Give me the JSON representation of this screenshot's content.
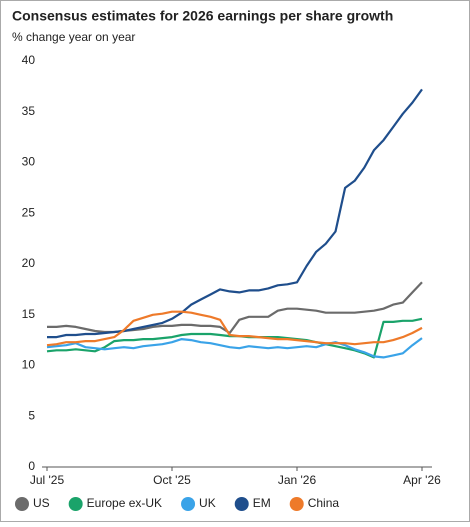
{
  "chart_data": {
    "type": "line",
    "title": "Consensus estimates for 2026 earnings per share growth",
    "subtitle": "% change year on year",
    "categories": [
      "Jul '25",
      null,
      null,
      null,
      null,
      null,
      null,
      null,
      null,
      null,
      null,
      null,
      null,
      "Oct '25",
      null,
      null,
      null,
      null,
      null,
      null,
      null,
      null,
      null,
      null,
      null,
      null,
      "Jan '26",
      null,
      null,
      null,
      null,
      null,
      null,
      null,
      null,
      null,
      null,
      null,
      null,
      "Apr '26"
    ],
    "ylim": [
      0,
      40
    ],
    "yticks": [
      0,
      5,
      10,
      15,
      20,
      25,
      30,
      35,
      40
    ],
    "series": [
      {
        "name": "US",
        "color": "#6b6b6b",
        "values": [
          13.8,
          13.8,
          13.9,
          13.8,
          13.6,
          13.4,
          13.3,
          13.3,
          13.4,
          13.5,
          13.6,
          13.8,
          13.9,
          13.9,
          14.0,
          14.0,
          13.9,
          13.9,
          13.8,
          13.2,
          14.5,
          14.8,
          14.8,
          14.8,
          15.4,
          15.6,
          15.6,
          15.5,
          15.4,
          15.2,
          15.2,
          15.2,
          15.2,
          15.3,
          15.4,
          15.6,
          16.0,
          16.2,
          17.2,
          18.2
        ]
      },
      {
        "name": "Europe ex-UK",
        "color": "#1aa36a",
        "values": [
          11.4,
          11.5,
          11.5,
          11.6,
          11.5,
          11.4,
          11.8,
          12.4,
          12.5,
          12.5,
          12.6,
          12.6,
          12.7,
          12.8,
          13.0,
          13.1,
          13.1,
          13.1,
          13.0,
          12.9,
          12.9,
          12.8,
          12.8,
          12.8,
          12.8,
          12.7,
          12.6,
          12.5,
          12.3,
          12.1,
          11.9,
          11.7,
          11.5,
          11.2,
          10.8,
          14.3,
          14.3,
          14.4,
          14.4,
          14.6
        ]
      },
      {
        "name": "UK",
        "color": "#3aa3e8",
        "values": [
          11.8,
          11.9,
          12.0,
          12.2,
          11.8,
          11.7,
          11.6,
          11.7,
          11.8,
          11.7,
          11.9,
          12.0,
          12.1,
          12.3,
          12.6,
          12.5,
          12.3,
          12.2,
          12.0,
          11.8,
          11.7,
          11.9,
          11.8,
          11.7,
          11.8,
          11.7,
          11.8,
          11.9,
          11.8,
          12.1,
          12.3,
          12.0,
          11.6,
          11.3,
          10.9,
          10.8,
          11.0,
          11.2,
          12.0,
          12.7
        ]
      },
      {
        "name": "EM",
        "color": "#1f4e8c",
        "values": [
          12.8,
          12.8,
          13.0,
          13.0,
          13.1,
          13.1,
          13.2,
          13.3,
          13.4,
          13.6,
          13.8,
          14.0,
          14.2,
          14.6,
          15.2,
          16.0,
          16.5,
          17.0,
          17.5,
          17.3,
          17.2,
          17.4,
          17.4,
          17.6,
          17.9,
          18.0,
          18.2,
          19.8,
          21.2,
          22.0,
          23.2,
          27.5,
          28.2,
          29.5,
          31.2,
          32.2,
          33.5,
          34.8,
          35.9,
          37.2
        ]
      },
      {
        "name": "China",
        "color": "#ee7a2a",
        "values": [
          12.0,
          12.1,
          12.3,
          12.3,
          12.4,
          12.4,
          12.6,
          12.8,
          13.5,
          14.4,
          14.7,
          15.0,
          15.1,
          15.3,
          15.3,
          15.2,
          15.0,
          14.8,
          14.5,
          13.0,
          12.9,
          12.9,
          12.8,
          12.7,
          12.6,
          12.6,
          12.5,
          12.4,
          12.3,
          12.2,
          12.2,
          12.2,
          12.1,
          12.2,
          12.3,
          12.3,
          12.5,
          12.8,
          13.2,
          13.7
        ]
      }
    ]
  }
}
